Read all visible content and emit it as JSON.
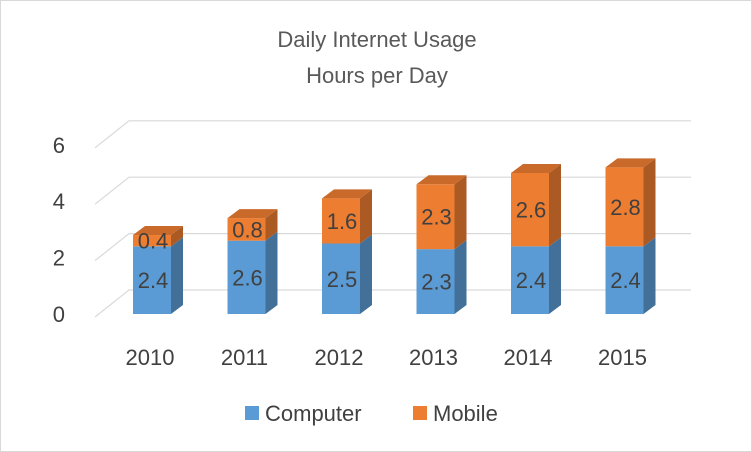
{
  "chart_data": {
    "type": "bar",
    "stacked": true,
    "style": "3d-column",
    "title": "Daily Internet Usage",
    "subtitle": "Hours per Day",
    "categories": [
      "2010",
      "2011",
      "2012",
      "2013",
      "2014",
      "2015"
    ],
    "series": [
      {
        "name": "Computer",
        "values": [
          2.4,
          2.6,
          2.5,
          2.3,
          2.4,
          2.4
        ],
        "labels": [
          "2.4",
          "2.6",
          "2.5",
          "2.3",
          "2.4",
          "2.4"
        ],
        "color": "#5b9bd5"
      },
      {
        "name": "Mobile",
        "values": [
          0.4,
          0.8,
          1.6,
          2.3,
          2.6,
          2.8
        ],
        "labels": [
          "0.4",
          "0.8",
          "1.6",
          "2.3",
          "2.6",
          "2.8"
        ],
        "color": "#ed7d31"
      }
    ],
    "yticks": [
      "0",
      "2",
      "4",
      "6"
    ],
    "ylim": [
      0,
      6
    ],
    "grid": true,
    "legend": "bottom"
  }
}
